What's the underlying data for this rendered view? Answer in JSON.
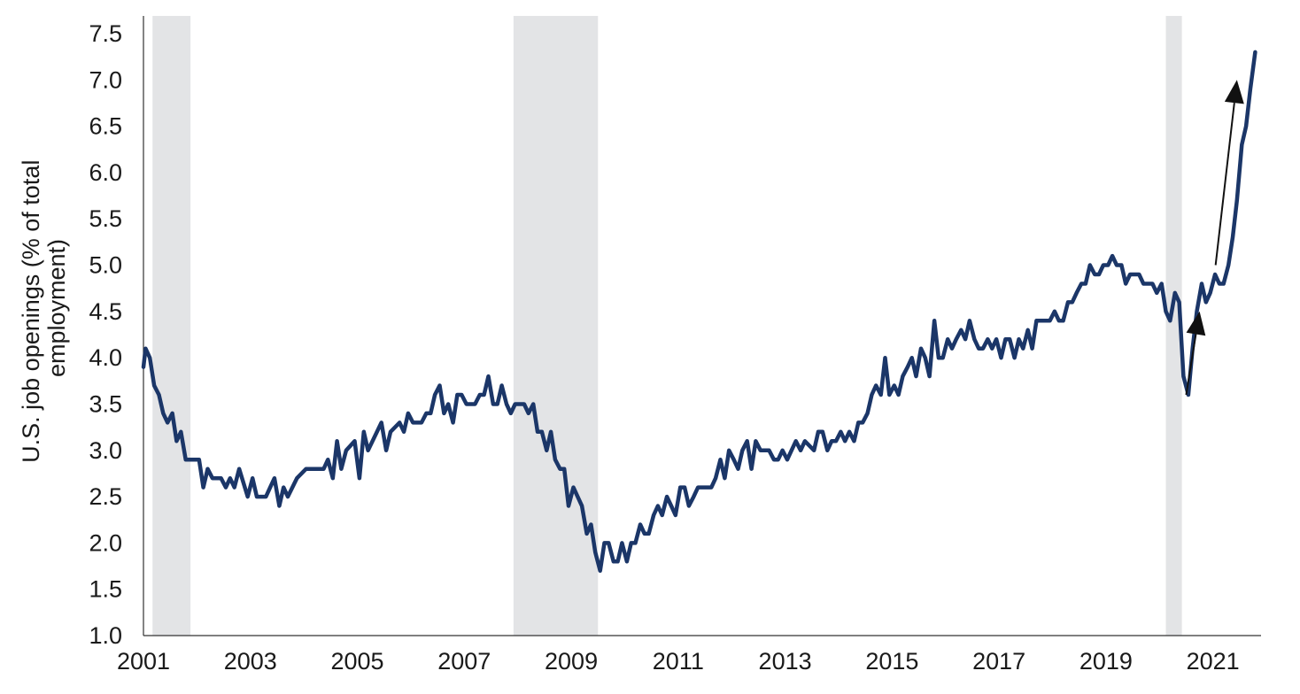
{
  "chart_data": {
    "type": "line",
    "title": "",
    "ylabel_lines": [
      "U.S. job openings (% of total",
      "employment)"
    ],
    "xlabel": "",
    "xlim": [
      2001.0,
      2021.9
    ],
    "ylim": [
      1.0,
      7.5
    ],
    "y_ticks": [
      "1.0",
      "1.5",
      "2.0",
      "2.5",
      "3.0",
      "3.5",
      "4.0",
      "4.5",
      "5.0",
      "5.5",
      "6.0",
      "6.5",
      "7.0",
      "7.5"
    ],
    "x_ticks": [
      "2001",
      "2003",
      "2005",
      "2007",
      "2009",
      "2011",
      "2013",
      "2015",
      "2017",
      "2019",
      "2021"
    ],
    "grid": false,
    "legend": "none",
    "recession_shading": [
      {
        "start": 2001.17,
        "end": 2001.88
      },
      {
        "start": 2007.92,
        "end": 2009.5
      },
      {
        "start": 2020.12,
        "end": 2020.42
      }
    ],
    "annotations": [
      {
        "type": "arrow",
        "from": [
          2020.5,
          3.6
        ],
        "to": [
          2020.75,
          4.5
        ]
      },
      {
        "type": "arrow",
        "from": [
          2021.05,
          5.0
        ],
        "to": [
          2021.45,
          7.0
        ]
      }
    ],
    "series": [
      {
        "color": "#1b3668",
        "points": [
          [
            2001.0,
            3.9
          ],
          [
            2001.04,
            4.1
          ],
          [
            2001.12,
            4.0
          ],
          [
            2001.2,
            3.7
          ],
          [
            2001.29,
            3.6
          ],
          [
            2001.37,
            3.4
          ],
          [
            2001.45,
            3.3
          ],
          [
            2001.54,
            3.4
          ],
          [
            2001.62,
            3.1
          ],
          [
            2001.7,
            3.2
          ],
          [
            2001.79,
            2.9
          ],
          [
            2001.95,
            2.9
          ],
          [
            2002.04,
            2.9
          ],
          [
            2002.12,
            2.6
          ],
          [
            2002.2,
            2.8
          ],
          [
            2002.29,
            2.7
          ],
          [
            2002.45,
            2.7
          ],
          [
            2002.54,
            2.6
          ],
          [
            2002.62,
            2.7
          ],
          [
            2002.7,
            2.6
          ],
          [
            2002.79,
            2.8
          ],
          [
            2002.95,
            2.5
          ],
          [
            2003.04,
            2.7
          ],
          [
            2003.12,
            2.5
          ],
          [
            2003.29,
            2.5
          ],
          [
            2003.37,
            2.6
          ],
          [
            2003.45,
            2.7
          ],
          [
            2003.54,
            2.4
          ],
          [
            2003.62,
            2.6
          ],
          [
            2003.7,
            2.5
          ],
          [
            2003.87,
            2.7
          ],
          [
            2004.04,
            2.8
          ],
          [
            2004.2,
            2.8
          ],
          [
            2004.37,
            2.8
          ],
          [
            2004.45,
            2.9
          ],
          [
            2004.54,
            2.7
          ],
          [
            2004.62,
            3.1
          ],
          [
            2004.7,
            2.8
          ],
          [
            2004.79,
            3.0
          ],
          [
            2004.95,
            3.1
          ],
          [
            2005.04,
            2.7
          ],
          [
            2005.12,
            3.2
          ],
          [
            2005.2,
            3.0
          ],
          [
            2005.45,
            3.3
          ],
          [
            2005.54,
            3.0
          ],
          [
            2005.62,
            3.2
          ],
          [
            2005.79,
            3.3
          ],
          [
            2005.87,
            3.2
          ],
          [
            2005.95,
            3.4
          ],
          [
            2006.04,
            3.3
          ],
          [
            2006.2,
            3.3
          ],
          [
            2006.29,
            3.4
          ],
          [
            2006.37,
            3.4
          ],
          [
            2006.45,
            3.6
          ],
          [
            2006.54,
            3.7
          ],
          [
            2006.62,
            3.4
          ],
          [
            2006.7,
            3.5
          ],
          [
            2006.79,
            3.3
          ],
          [
            2006.87,
            3.6
          ],
          [
            2006.95,
            3.6
          ],
          [
            2007.04,
            3.5
          ],
          [
            2007.2,
            3.5
          ],
          [
            2007.29,
            3.6
          ],
          [
            2007.37,
            3.6
          ],
          [
            2007.45,
            3.8
          ],
          [
            2007.54,
            3.5
          ],
          [
            2007.62,
            3.5
          ],
          [
            2007.7,
            3.7
          ],
          [
            2007.79,
            3.5
          ],
          [
            2007.87,
            3.4
          ],
          [
            2007.95,
            3.5
          ],
          [
            2008.12,
            3.5
          ],
          [
            2008.2,
            3.4
          ],
          [
            2008.29,
            3.5
          ],
          [
            2008.37,
            3.2
          ],
          [
            2008.45,
            3.2
          ],
          [
            2008.54,
            3.0
          ],
          [
            2008.62,
            3.2
          ],
          [
            2008.7,
            2.9
          ],
          [
            2008.79,
            2.8
          ],
          [
            2008.87,
            2.8
          ],
          [
            2008.95,
            2.4
          ],
          [
            2009.04,
            2.6
          ],
          [
            2009.12,
            2.5
          ],
          [
            2009.2,
            2.4
          ],
          [
            2009.29,
            2.1
          ],
          [
            2009.37,
            2.2
          ],
          [
            2009.45,
            1.9
          ],
          [
            2009.54,
            1.7
          ],
          [
            2009.62,
            2.0
          ],
          [
            2009.7,
            2.0
          ],
          [
            2009.79,
            1.8
          ],
          [
            2009.87,
            1.8
          ],
          [
            2009.95,
            2.0
          ],
          [
            2010.04,
            1.8
          ],
          [
            2010.12,
            2.0
          ],
          [
            2010.2,
            2.0
          ],
          [
            2010.29,
            2.2
          ],
          [
            2010.37,
            2.1
          ],
          [
            2010.45,
            2.1
          ],
          [
            2010.54,
            2.3
          ],
          [
            2010.62,
            2.4
          ],
          [
            2010.7,
            2.3
          ],
          [
            2010.79,
            2.5
          ],
          [
            2010.87,
            2.4
          ],
          [
            2010.95,
            2.3
          ],
          [
            2011.04,
            2.6
          ],
          [
            2011.12,
            2.6
          ],
          [
            2011.2,
            2.4
          ],
          [
            2011.29,
            2.5
          ],
          [
            2011.37,
            2.6
          ],
          [
            2011.54,
            2.6
          ],
          [
            2011.62,
            2.6
          ],
          [
            2011.7,
            2.7
          ],
          [
            2011.79,
            2.9
          ],
          [
            2011.87,
            2.7
          ],
          [
            2011.95,
            3.0
          ],
          [
            2012.04,
            2.9
          ],
          [
            2012.12,
            2.8
          ],
          [
            2012.2,
            3.0
          ],
          [
            2012.29,
            3.1
          ],
          [
            2012.37,
            2.8
          ],
          [
            2012.45,
            3.1
          ],
          [
            2012.54,
            3.0
          ],
          [
            2012.7,
            3.0
          ],
          [
            2012.79,
            2.9
          ],
          [
            2012.87,
            2.9
          ],
          [
            2012.95,
            3.0
          ],
          [
            2013.04,
            2.9
          ],
          [
            2013.12,
            3.0
          ],
          [
            2013.2,
            3.1
          ],
          [
            2013.29,
            3.0
          ],
          [
            2013.37,
            3.1
          ],
          [
            2013.54,
            3.0
          ],
          [
            2013.62,
            3.2
          ],
          [
            2013.7,
            3.2
          ],
          [
            2013.79,
            3.0
          ],
          [
            2013.87,
            3.1
          ],
          [
            2013.95,
            3.1
          ],
          [
            2014.04,
            3.2
          ],
          [
            2014.12,
            3.1
          ],
          [
            2014.2,
            3.2
          ],
          [
            2014.29,
            3.1
          ],
          [
            2014.37,
            3.3
          ],
          [
            2014.45,
            3.3
          ],
          [
            2014.54,
            3.4
          ],
          [
            2014.62,
            3.6
          ],
          [
            2014.7,
            3.7
          ],
          [
            2014.79,
            3.6
          ],
          [
            2014.87,
            4.0
          ],
          [
            2014.95,
            3.6
          ],
          [
            2015.04,
            3.7
          ],
          [
            2015.12,
            3.6
          ],
          [
            2015.2,
            3.8
          ],
          [
            2015.29,
            3.9
          ],
          [
            2015.37,
            4.0
          ],
          [
            2015.45,
            3.8
          ],
          [
            2015.54,
            4.1
          ],
          [
            2015.62,
            4.0
          ],
          [
            2015.7,
            3.8
          ],
          [
            2015.79,
            4.4
          ],
          [
            2015.87,
            4.0
          ],
          [
            2015.95,
            4.0
          ],
          [
            2016.04,
            4.2
          ],
          [
            2016.12,
            4.1
          ],
          [
            2016.2,
            4.2
          ],
          [
            2016.29,
            4.3
          ],
          [
            2016.37,
            4.2
          ],
          [
            2016.45,
            4.4
          ],
          [
            2016.54,
            4.2
          ],
          [
            2016.62,
            4.1
          ],
          [
            2016.7,
            4.1
          ],
          [
            2016.79,
            4.2
          ],
          [
            2016.87,
            4.1
          ],
          [
            2016.95,
            4.2
          ],
          [
            2017.04,
            4.0
          ],
          [
            2017.12,
            4.2
          ],
          [
            2017.2,
            4.2
          ],
          [
            2017.29,
            4.0
          ],
          [
            2017.37,
            4.2
          ],
          [
            2017.45,
            4.1
          ],
          [
            2017.54,
            4.3
          ],
          [
            2017.62,
            4.1
          ],
          [
            2017.7,
            4.4
          ],
          [
            2017.87,
            4.4
          ],
          [
            2017.95,
            4.4
          ],
          [
            2018.04,
            4.5
          ],
          [
            2018.12,
            4.4
          ],
          [
            2018.2,
            4.4
          ],
          [
            2018.29,
            4.6
          ],
          [
            2018.37,
            4.6
          ],
          [
            2018.45,
            4.7
          ],
          [
            2018.54,
            4.8
          ],
          [
            2018.62,
            4.8
          ],
          [
            2018.7,
            5.0
          ],
          [
            2018.79,
            4.9
          ],
          [
            2018.87,
            4.9
          ],
          [
            2018.95,
            5.0
          ],
          [
            2019.04,
            5.0
          ],
          [
            2019.12,
            5.1
          ],
          [
            2019.2,
            5.0
          ],
          [
            2019.29,
            5.0
          ],
          [
            2019.37,
            4.8
          ],
          [
            2019.45,
            4.9
          ],
          [
            2019.62,
            4.9
          ],
          [
            2019.7,
            4.8
          ],
          [
            2019.87,
            4.8
          ],
          [
            2019.95,
            4.7
          ],
          [
            2020.04,
            4.8
          ],
          [
            2020.12,
            4.5
          ],
          [
            2020.2,
            4.4
          ],
          [
            2020.29,
            4.7
          ],
          [
            2020.37,
            4.6
          ],
          [
            2020.45,
            3.8
          ],
          [
            2020.54,
            3.6
          ],
          [
            2020.62,
            4.1
          ],
          [
            2020.7,
            4.5
          ],
          [
            2020.79,
            4.8
          ],
          [
            2020.87,
            4.6
          ],
          [
            2020.95,
            4.7
          ],
          [
            2021.04,
            4.9
          ],
          [
            2021.12,
            4.8
          ],
          [
            2021.2,
            4.8
          ],
          [
            2021.29,
            5.0
          ],
          [
            2021.37,
            5.3
          ],
          [
            2021.45,
            5.7
          ],
          [
            2021.54,
            6.3
          ],
          [
            2021.62,
            6.5
          ],
          [
            2021.7,
            6.9
          ],
          [
            2021.79,
            7.3
          ]
        ]
      }
    ]
  }
}
